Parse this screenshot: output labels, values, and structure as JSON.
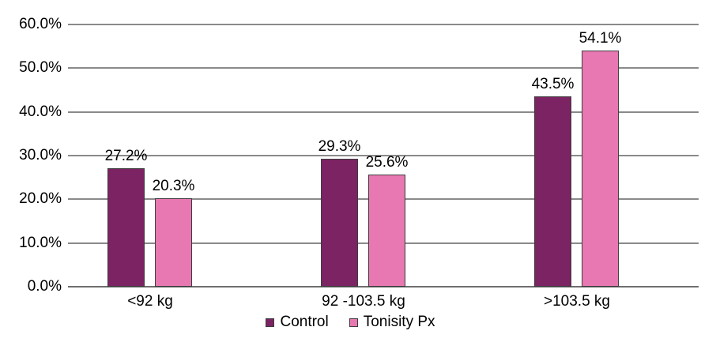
{
  "chart_data": {
    "type": "bar",
    "title": "",
    "categories": [
      "<92 kg",
      "92 -103.5 kg",
      ">103.5 kg"
    ],
    "series": [
      {
        "name": "Control",
        "color": "#7C2363",
        "values": [
          27.2,
          29.3,
          43.5
        ],
        "labels": [
          "27.2%",
          "29.3%",
          "43.5%"
        ]
      },
      {
        "name": "Tonisity Px",
        "color": "#E878B2",
        "values": [
          20.3,
          25.6,
          54.1
        ],
        "labels": [
          "20.3%",
          "25.6%",
          "54.1%"
        ]
      }
    ],
    "y_axis": {
      "min": 0,
      "max": 60,
      "step": 10,
      "tick_labels": [
        "0.0%",
        "10.0%",
        "20.0%",
        "30.0%",
        "40.0%",
        "50.0%",
        "60.0%"
      ]
    },
    "xlabel": "",
    "ylabel": "",
    "grid": true,
    "legend_position": "bottom",
    "legend": [
      "Control",
      "Tonisity Px"
    ]
  },
  "colors": {
    "control_bar": "#7C2363",
    "tonisity_bar": "#E878B2",
    "gridline": "#8a8a8a",
    "bar_outline": "#3d3d3d",
    "text": "#000000"
  }
}
